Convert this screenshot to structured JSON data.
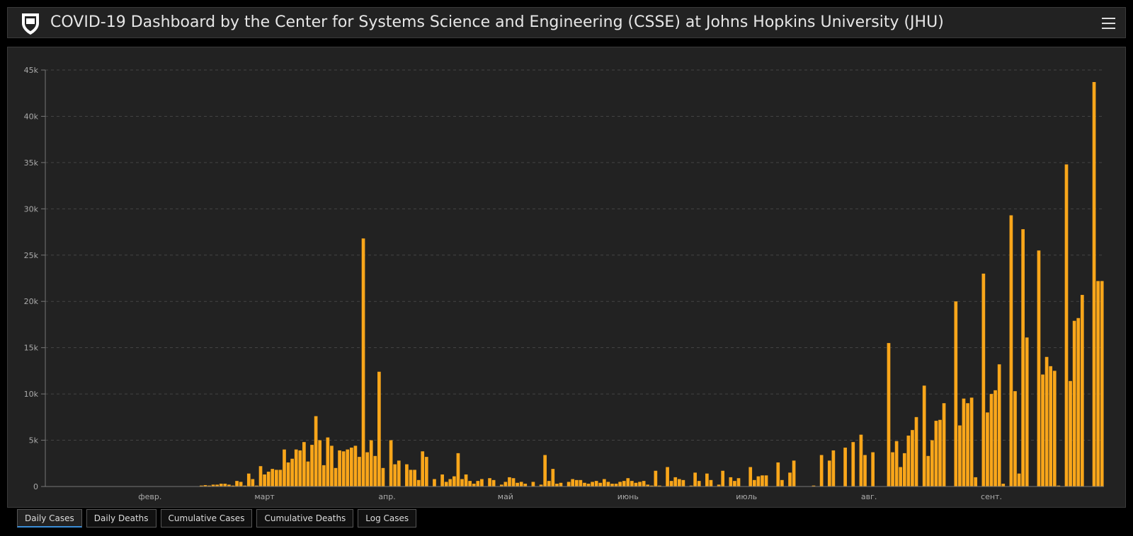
{
  "header": {
    "title": "COVID-19 Dashboard by the Center for Systems Science and Engineering (CSSE) at Johns Hopkins University (JHU)"
  },
  "tabs": [
    "Daily Cases",
    "Daily Deaths",
    "Cumulative Cases",
    "Cumulative Deaths",
    "Log Cases"
  ],
  "chart_data": {
    "type": "bar",
    "color": "#f9a61a",
    "grid": true,
    "ylim": [
      0,
      45000
    ],
    "yticks": [
      0,
      {
        "value": 5000,
        "label": "5k"
      },
      {
        "value": 10000,
        "label": "10k"
      },
      {
        "value": 15000,
        "label": "15k"
      },
      {
        "value": 20000,
        "label": "20k"
      },
      {
        "value": 25000,
        "label": "25k"
      },
      {
        "value": 30000,
        "label": "30k"
      },
      {
        "value": 35000,
        "label": "35k"
      },
      {
        "value": 40000,
        "label": "40k"
      },
      {
        "value": 45000,
        "label": "45k"
      }
    ],
    "categories": [
      null,
      null,
      null,
      null,
      null,
      null,
      null,
      null,
      null,
      null,
      null,
      null,
      null,
      null,
      null,
      null,
      null,
      null,
      null,
      null,
      null,
      null,
      null,
      null,
      null,
      null,
      "февр.",
      null,
      null,
      null,
      null,
      null,
      null,
      null,
      null,
      null,
      null,
      null,
      null,
      null,
      null,
      null,
      null,
      null,
      null,
      null,
      null,
      null,
      null,
      null,
      null,
      null,
      null,
      null,
      null,
      "март",
      null,
      null,
      null,
      null,
      null,
      null,
      null,
      null,
      null,
      null,
      null,
      null,
      null,
      null,
      null,
      null,
      null,
      null,
      null,
      null,
      null,
      null,
      null,
      null,
      null,
      null,
      null,
      null,
      null,
      null,
      "апр.",
      null,
      null,
      null,
      null,
      null,
      null,
      null,
      null,
      null,
      null,
      null,
      null,
      null,
      null,
      null,
      null,
      null,
      null,
      null,
      null,
      null,
      null,
      null,
      null,
      null,
      null,
      null,
      null,
      null,
      "май",
      null,
      null,
      null,
      null,
      null,
      null,
      null,
      null,
      null,
      null,
      null,
      null,
      null,
      null,
      null,
      null,
      null,
      null,
      null,
      null,
      null,
      null,
      null,
      null,
      null,
      null,
      null,
      null,
      null,
      null,
      "июнь",
      null,
      null,
      null,
      null,
      null,
      null,
      null,
      null,
      null,
      null,
      null,
      null,
      null,
      null,
      null,
      null,
      null,
      null,
      null,
      null,
      null,
      null,
      null,
      null,
      null,
      null,
      null,
      null,
      null,
      "июль",
      null,
      null,
      null,
      null,
      null,
      null,
      null,
      null,
      null,
      null,
      null,
      null,
      null,
      null,
      null,
      null,
      null,
      null,
      null,
      null,
      null,
      null,
      null,
      null,
      null,
      null,
      null,
      null,
      null,
      null,
      "авг.",
      null,
      null,
      null,
      null,
      null,
      null,
      null,
      null,
      null,
      null,
      null,
      null,
      null,
      null,
      null,
      null,
      null,
      null,
      null,
      null,
      null,
      null,
      null,
      null,
      null,
      null,
      null,
      null,
      null,
      null,
      "сент.",
      null,
      null,
      null,
      null,
      null,
      null,
      null,
      null,
      null,
      null,
      null,
      null,
      null,
      null,
      null,
      null,
      null,
      null,
      null,
      null,
      null,
      null,
      null,
      null,
      null,
      null,
      null,
      null
    ],
    "values": [
      0,
      0,
      0,
      0,
      0,
      0,
      0,
      0,
      0,
      0,
      0,
      0,
      0,
      0,
      0,
      0,
      0,
      0,
      0,
      0,
      0,
      0,
      0,
      0,
      0,
      0,
      0,
      0,
      0,
      0,
      0,
      0,
      0,
      0,
      0,
      0,
      0,
      0,
      0,
      100,
      150,
      100,
      200,
      200,
      300,
      300,
      200,
      100,
      600,
      500,
      100,
      1400,
      800,
      100,
      2200,
      1300,
      1600,
      1900,
      1800,
      1800,
      4000,
      2600,
      3000,
      4000,
      3900,
      4800,
      2700,
      4500,
      7600,
      5000,
      2300,
      5300,
      4400,
      2000,
      3900,
      3800,
      4000,
      4200,
      4400,
      3200,
      26800,
      3700,
      5000,
      3300,
      12400,
      2000,
      0,
      5000,
      2400,
      2800,
      0,
      2400,
      1800,
      1800,
      700,
      3800,
      3200,
      0,
      800,
      0,
      1300,
      500,
      800,
      1100,
      3600,
      800,
      1300,
      600,
      300,
      600,
      800,
      0,
      900,
      700,
      0,
      200,
      500,
      1000,
      900,
      400,
      500,
      300,
      0,
      500,
      0,
      200,
      3400,
      600,
      1900,
      300,
      400,
      0,
      500,
      800,
      700,
      700,
      400,
      300,
      500,
      600,
      400,
      800,
      500,
      300,
      300,
      500,
      600,
      900,
      600,
      400,
      500,
      600,
      200,
      100,
      1700,
      100,
      0,
      2100,
      600,
      1000,
      800,
      700,
      0,
      100,
      1500,
      600,
      0,
      1400,
      700,
      0,
      200,
      1700,
      0,
      1000,
      600,
      900,
      0,
      0,
      2100,
      700,
      1100,
      1200,
      1200,
      0,
      0,
      2600,
      700,
      0,
      1500,
      2800,
      0,
      0,
      0,
      0,
      100,
      0,
      3400,
      0,
      2800,
      3900,
      0,
      0,
      4200,
      0,
      4800,
      0,
      5600,
      3400,
      0,
      3700,
      0,
      0,
      0,
      15500,
      3700,
      4900,
      2100,
      3600,
      5500,
      6100,
      7500,
      0,
      10900,
      3300,
      5000,
      7100,
      7200,
      9000,
      0,
      0,
      20000,
      6600,
      9500,
      9000,
      9600,
      1000,
      0,
      23000,
      8000,
      10000,
      10400,
      13200,
      300,
      0,
      29300,
      10300,
      1400,
      27800,
      16100,
      0,
      0,
      25500,
      12100,
      14000,
      13000,
      12500,
      100,
      0,
      34800,
      11400,
      17900,
      18200,
      20700,
      0,
      0,
      43700,
      22200,
      22200
    ]
  }
}
